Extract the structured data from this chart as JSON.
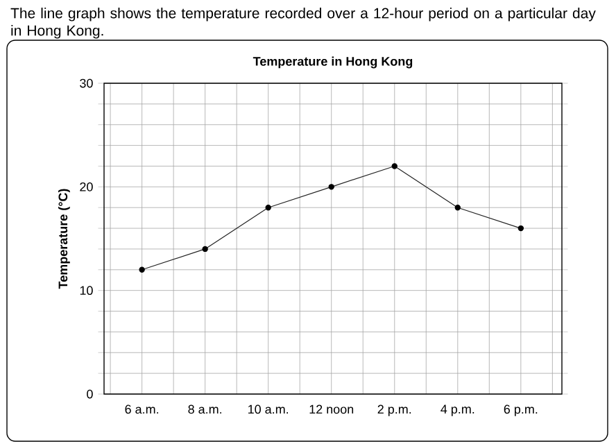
{
  "chart_data": {
    "type": "line",
    "title": "Temperature in Hong Kong",
    "ylabel": "Temperature (°C)",
    "annotations": [
      "The line graph shows the temperature recorded over a 12-hour period on a particular day in Hong Kong."
    ],
    "categories": [
      "6 a.m.",
      "8 a.m.",
      "10 a.m.",
      "12 noon",
      "2 p.m.",
      "4 p.m.",
      "6 p.m."
    ],
    "values": [
      12,
      14,
      18,
      20,
      22,
      18,
      16
    ],
    "color": "#222222",
    "marker": "circle",
    "line_style": "solid",
    "grid": true,
    "ylim": [
      0,
      30
    ],
    "yticks": [
      0,
      {
        "value": 2,
        "label": null
      },
      {
        "value": 4,
        "label": null
      },
      {
        "value": 6,
        "label": null
      },
      {
        "value": 8,
        "label": null
      },
      10,
      {
        "value": 12,
        "label": null
      },
      {
        "value": 14,
        "label": null
      },
      {
        "value": 16,
        "label": null
      },
      {
        "value": 18,
        "label": null
      },
      20,
      {
        "value": 22,
        "label": null
      },
      {
        "value": 24,
        "label": null
      },
      {
        "value": 26,
        "label": null
      },
      {
        "value": 28,
        "label": null
      },
      30
    ]
  }
}
